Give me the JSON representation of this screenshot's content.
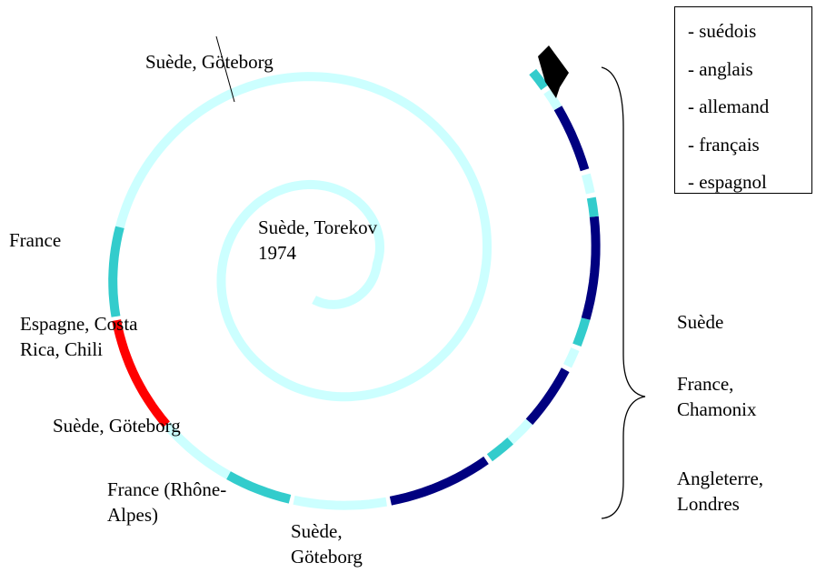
{
  "labels": [
    "Suède, Göteborg",
    "Suède, Torekov 1974",
    "France",
    "Espagne, Costa Rica, Chili",
    "Suède, Göteborg",
    "France (Rhône-Alpes)",
    "Suède, Göteborg"
  ],
  "legend": [
    "- suédois",
    "- anglais",
    "- allemand",
    "- français",
    "- espagnol"
  ],
  "right_labels": [
    "Suède",
    "France, Chamonix",
    "Angleterre, Londres"
  ]
}
